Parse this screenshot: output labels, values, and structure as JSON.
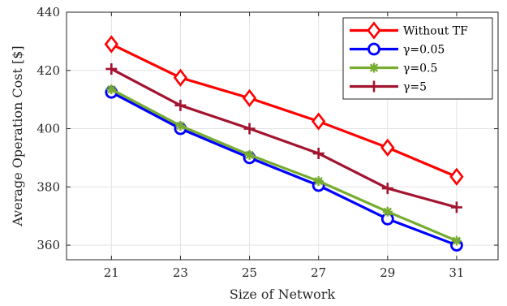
{
  "chart_data": {
    "type": "line",
    "x": [
      21,
      23,
      25,
      27,
      29,
      31
    ],
    "xlabel": "Size of Network",
    "ylabel": "Average Operation Cost [$]",
    "xticks": [
      "21",
      "23",
      "25",
      "27",
      "29",
      "31"
    ],
    "yticks": [
      "360",
      "380",
      "400",
      "420",
      "440"
    ],
    "xlim": [
      19.7,
      32.2
    ],
    "ylim": [
      355,
      440
    ],
    "grid": true,
    "legend_position": "top-right",
    "series": [
      {
        "name": "Without TF",
        "color": "#ff0000",
        "marker": "diamond",
        "values": [
          429,
          417.5,
          410.5,
          402.5,
          393.5,
          383.5
        ]
      },
      {
        "name": "γ=0.05",
        "color": "#0000ff",
        "marker": "circle",
        "values": [
          412.5,
          400,
          390,
          380.5,
          369,
          360
        ]
      },
      {
        "name": "γ=0.5",
        "color": "#77ac30",
        "marker": "asterisk",
        "values": [
          413.5,
          401,
          391,
          382,
          371.5,
          361.5
        ]
      },
      {
        "name": "γ=5",
        "color": "#a2142f",
        "marker": "plus",
        "values": [
          420.5,
          408,
          400,
          391.5,
          379.5,
          373
        ]
      }
    ]
  }
}
